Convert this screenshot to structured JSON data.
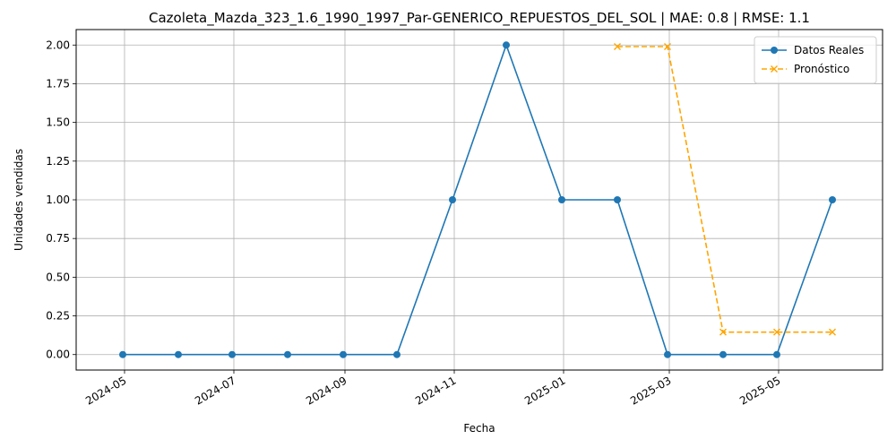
{
  "chart_data": {
    "type": "line",
    "title": "Cazoleta_Mazda_323_1.6_1990_1997_Par-GENERICO_REPUESTOS_DEL_SOL | MAE: 0.8 | RMSE: 1.1",
    "xlabel": "Fecha",
    "ylabel": "Unidades vendidas",
    "ylim": [
      -0.1,
      2.1
    ],
    "xlim": [
      "2024-04-04",
      "2025-06-28"
    ],
    "grid": true,
    "legend_position": "top-right",
    "x_ticks": [
      "2024-05",
      "2024-07",
      "2024-09",
      "2024-11",
      "2025-01",
      "2025-03",
      "2025-05"
    ],
    "y_ticks": [
      "0.00",
      "0.25",
      "0.50",
      "0.75",
      "1.00",
      "1.25",
      "1.50",
      "1.75",
      "2.00"
    ],
    "series": [
      {
        "name": "Datos Reales",
        "color": "#1f77b4",
        "style": "solid",
        "marker": "circle",
        "points": [
          {
            "x": "2024-04-30",
            "y": 0
          },
          {
            "x": "2024-05-31",
            "y": 0
          },
          {
            "x": "2024-06-30",
            "y": 0
          },
          {
            "x": "2024-07-31",
            "y": 0
          },
          {
            "x": "2024-08-31",
            "y": 0
          },
          {
            "x": "2024-09-30",
            "y": 0
          },
          {
            "x": "2024-10-31",
            "y": 1
          },
          {
            "x": "2024-11-30",
            "y": 2
          },
          {
            "x": "2024-12-31",
            "y": 1
          },
          {
            "x": "2025-01-31",
            "y": 1
          },
          {
            "x": "2025-02-28",
            "y": 0
          },
          {
            "x": "2025-03-31",
            "y": 0
          },
          {
            "x": "2025-04-30",
            "y": 0
          },
          {
            "x": "2025-05-31",
            "y": 1
          }
        ]
      },
      {
        "name": "Pronóstico",
        "color": "#ffa500",
        "style": "dashed",
        "marker": "x",
        "points": [
          {
            "x": "2025-01-31",
            "y": 1.99
          },
          {
            "x": "2025-02-28",
            "y": 1.99
          },
          {
            "x": "2025-03-31",
            "y": 0.145
          },
          {
            "x": "2025-04-30",
            "y": 0.145
          },
          {
            "x": "2025-05-31",
            "y": 0.145
          }
        ]
      }
    ]
  }
}
